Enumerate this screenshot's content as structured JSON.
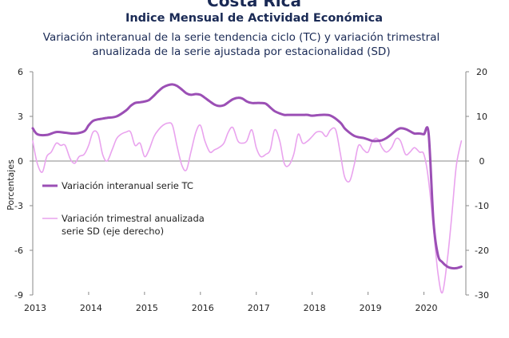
{
  "chart_data": {
    "type": "line",
    "top_title": "Costa Rica",
    "title": "Indice Mensual de  Actividad Económica",
    "subtitle_line1": "Variación interanual de la serie tendencia ciclo (TC) y variación trimestral",
    "subtitle_line2": "anualizada de la serie ajustada por estacionalidad (SD)",
    "ylabel": "Porcentajes",
    "xlim": [
      2013,
      2020.75
    ],
    "ylim_left": [
      -9,
      6
    ],
    "ylim_right": [
      -30,
      20
    ],
    "x_ticks": [
      2013,
      2014,
      2015,
      2016,
      2017,
      2018,
      2019,
      2020
    ],
    "x_tick_labels": [
      "2013",
      "2014",
      "2015",
      "2016",
      "2017",
      "2018",
      "2019",
      "2020"
    ],
    "y_ticks_left": [
      6,
      3,
      0,
      -3,
      -6,
      -9
    ],
    "y_tick_labels_left": [
      "6",
      "3",
      "0",
      "-3",
      "-6",
      "-9"
    ],
    "y_ticks_right": [
      20,
      10,
      0,
      -10,
      -20,
      -30
    ],
    "y_tick_labels_right": [
      "20",
      "10",
      "0",
      "-10",
      "-20",
      "-30"
    ],
    "grid": false,
    "legend_position": "center-left",
    "series": [
      {
        "name": "Variación interanual serie TC",
        "axis": "left",
        "color": "#9b4fb5",
        "x": [
          2013.0,
          2013.083,
          2013.25,
          2013.42,
          2013.58,
          2013.75,
          2013.92,
          2014.0,
          2014.08,
          2014.17,
          2014.25,
          2014.33,
          2014.5,
          2014.67,
          2014.75,
          2014.83,
          2014.92,
          2015.0,
          2015.08,
          2015.17,
          2015.25,
          2015.33,
          2015.42,
          2015.5,
          2015.58,
          2015.67,
          2015.75,
          2015.83,
          2015.92,
          2016.0,
          2016.08,
          2016.17,
          2016.25,
          2016.33,
          2016.42,
          2016.5,
          2016.58,
          2016.67,
          2016.75,
          2016.83,
          2016.92,
          2017.0,
          2017.08,
          2017.17,
          2017.25,
          2017.33,
          2017.42,
          2017.5,
          2017.58,
          2017.67,
          2017.75,
          2017.83,
          2017.92,
          2018.0,
          2018.17,
          2018.33,
          2018.5,
          2018.58,
          2018.67,
          2018.75,
          2018.83,
          2018.92,
          2019.0,
          2019.08,
          2019.17,
          2019.25,
          2019.33,
          2019.42,
          2019.5,
          2019.58,
          2019.67,
          2019.75,
          2019.83,
          2019.92,
          2020.0,
          2020.083,
          2020.17,
          2020.25,
          2020.33,
          2020.42,
          2020.5,
          2020.58,
          2020.67
        ],
        "values": [
          2.2,
          1.8,
          1.75,
          1.95,
          1.9,
          1.85,
          2.0,
          2.4,
          2.7,
          2.8,
          2.85,
          2.9,
          3.0,
          3.4,
          3.7,
          3.9,
          3.95,
          4.0,
          4.1,
          4.4,
          4.7,
          4.95,
          5.1,
          5.15,
          5.05,
          4.8,
          4.55,
          4.45,
          4.5,
          4.45,
          4.25,
          4.0,
          3.8,
          3.7,
          3.75,
          3.95,
          4.15,
          4.25,
          4.2,
          4.0,
          3.9,
          3.9,
          3.9,
          3.85,
          3.6,
          3.35,
          3.2,
          3.1,
          3.1,
          3.1,
          3.1,
          3.1,
          3.1,
          3.05,
          3.1,
          3.05,
          2.6,
          2.2,
          1.9,
          1.7,
          1.6,
          1.55,
          1.45,
          1.35,
          1.35,
          1.4,
          1.55,
          1.8,
          2.05,
          2.2,
          2.15,
          2.0,
          1.85,
          1.85,
          1.8,
          1.85,
          -4.0,
          -6.3,
          -6.8,
          -7.1,
          -7.2,
          -7.2,
          -7.1
        ]
      },
      {
        "name": "Variación trimestral anualizada serie SD (eje derecho)",
        "legend_line1": "Variación trimestral anualizada",
        "legend_line2": "serie SD (eje derecho)",
        "axis": "right",
        "color": "#e9a3ee",
        "x": [
          2013.0,
          2013.08,
          2013.17,
          2013.25,
          2013.33,
          2013.42,
          2013.5,
          2013.58,
          2013.67,
          2013.75,
          2013.83,
          2013.92,
          2014.0,
          2014.08,
          2014.17,
          2014.25,
          2014.33,
          2014.42,
          2014.5,
          2014.58,
          2014.67,
          2014.75,
          2014.83,
          2014.92,
          2015.0,
          2015.08,
          2015.17,
          2015.25,
          2015.33,
          2015.42,
          2015.5,
          2015.58,
          2015.67,
          2015.75,
          2015.83,
          2015.92,
          2016.0,
          2016.08,
          2016.17,
          2016.25,
          2016.33,
          2016.42,
          2016.5,
          2016.58,
          2016.67,
          2016.75,
          2016.83,
          2016.92,
          2017.0,
          2017.08,
          2017.17,
          2017.25,
          2017.33,
          2017.42,
          2017.5,
          2017.58,
          2017.67,
          2017.75,
          2017.83,
          2017.92,
          2018.0,
          2018.08,
          2018.17,
          2018.25,
          2018.33,
          2018.42,
          2018.5,
          2018.58,
          2018.67,
          2018.75,
          2018.83,
          2018.92,
          2019.0,
          2019.08,
          2019.17,
          2019.25,
          2019.33,
          2019.42,
          2019.5,
          2019.58,
          2019.67,
          2019.75,
          2019.83,
          2019.92,
          2020.0,
          2020.08,
          2020.17,
          2020.25,
          2020.33,
          2020.42,
          2020.5,
          2020.58,
          2020.67
        ],
        "values": [
          4.5,
          -0.5,
          -2.5,
          1.0,
          2.0,
          4.0,
          3.5,
          3.5,
          0.5,
          -0.5,
          1.0,
          1.5,
          3.5,
          6.5,
          6.0,
          1.5,
          0.0,
          2.5,
          5.0,
          6.0,
          6.5,
          6.5,
          3.5,
          4.0,
          1.0,
          2.5,
          5.5,
          7.0,
          8.0,
          8.5,
          8.0,
          3.5,
          -1.0,
          -2.0,
          2.0,
          6.5,
          8.0,
          4.5,
          2.0,
          2.5,
          3.0,
          4.0,
          6.5,
          7.5,
          4.5,
          4.0,
          4.5,
          7.0,
          3.0,
          1.0,
          1.5,
          2.5,
          7.0,
          4.5,
          -0.5,
          -1.0,
          1.5,
          6.0,
          4.0,
          4.5,
          5.5,
          6.5,
          6.5,
          5.5,
          7.0,
          7.0,
          2.0,
          -3.5,
          -4.5,
          -1.0,
          3.5,
          2.5,
          2.0,
          4.5,
          5.0,
          3.0,
          2.0,
          3.0,
          5.0,
          4.5,
          1.5,
          2.0,
          3.0,
          2.0,
          1.5,
          -4.0,
          -15.0,
          -25.0,
          -29.5,
          -22.0,
          -12.0,
          -1.0,
          4.5
        ]
      }
    ]
  }
}
